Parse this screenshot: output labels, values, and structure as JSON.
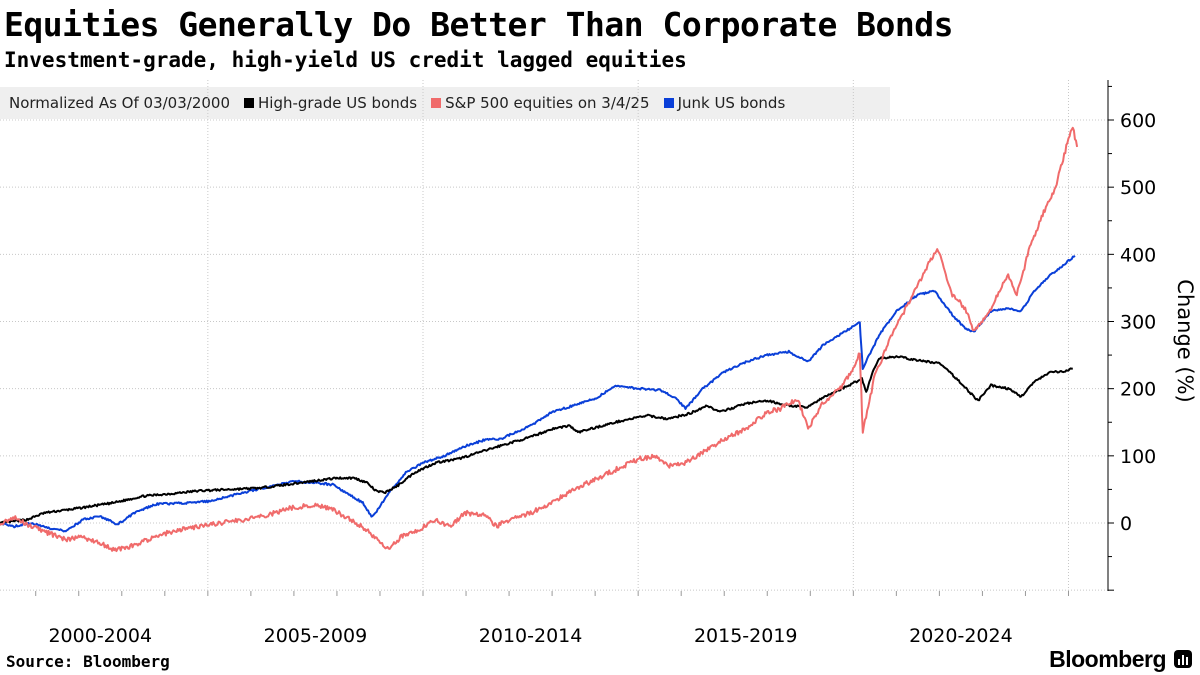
{
  "header": {
    "title": "Equities Generally Do Better Than Corporate Bonds",
    "subtitle": "Investment-grade, high-yield US credit lagged equities"
  },
  "legend": {
    "note": "Normalized As Of 03/03/2000",
    "entries": [
      {
        "label": "High-grade US bonds",
        "color": "#000000"
      },
      {
        "label": "S&P 500 equities on 3/4/25",
        "color": "#f06b6b"
      },
      {
        "label": "Junk US bonds",
        "color": "#0a3fd8"
      }
    ]
  },
  "footer": {
    "source": "Source: Bloomberg",
    "brand": "Bloomberg"
  },
  "chart_data": {
    "type": "line",
    "title": "Equities Generally Do Better Than Corporate Bonds",
    "ylabel": "Change (%)",
    "xlabel": "",
    "xlim": [
      2000.17,
      2025.5
    ],
    "ylim": [
      -100,
      660
    ],
    "yticks": [
      0,
      100,
      200,
      300,
      400,
      500,
      600
    ],
    "x_tick_labels": [
      {
        "label": "2000-2004",
        "x": 2002.5
      },
      {
        "label": "2005-2009",
        "x": 2007.5
      },
      {
        "label": "2010-2014",
        "x": 2012.5
      },
      {
        "label": "2015-2019",
        "x": 2017.5
      },
      {
        "label": "2020-2024",
        "x": 2022.5
      }
    ],
    "x_gridlines": [
      2005,
      2010,
      2015,
      2020,
      2025
    ],
    "grid": true,
    "series": [
      {
        "name": "High-grade US bonds",
        "color": "#000000",
        "points": [
          [
            2000.17,
            0
          ],
          [
            2000.8,
            5
          ],
          [
            2001.2,
            15
          ],
          [
            2002,
            22
          ],
          [
            2002.8,
            30
          ],
          [
            2003.5,
            40
          ],
          [
            2004.2,
            44
          ],
          [
            2004.8,
            48
          ],
          [
            2005.5,
            50
          ],
          [
            2006.2,
            52
          ],
          [
            2006.8,
            57
          ],
          [
            2007.5,
            63
          ],
          [
            2008,
            67
          ],
          [
            2008.4,
            67
          ],
          [
            2008.7,
            60
          ],
          [
            2008.9,
            48
          ],
          [
            2009.1,
            45
          ],
          [
            2009.4,
            55
          ],
          [
            2009.8,
            75
          ],
          [
            2010.3,
            90
          ],
          [
            2010.8,
            95
          ],
          [
            2011.3,
            105
          ],
          [
            2011.8,
            115
          ],
          [
            2012.5,
            128
          ],
          [
            2013,
            140
          ],
          [
            2013.4,
            145
          ],
          [
            2013.6,
            135
          ],
          [
            2014,
            142
          ],
          [
            2014.6,
            152
          ],
          [
            2015.2,
            160
          ],
          [
            2015.7,
            155
          ],
          [
            2016.2,
            163
          ],
          [
            2016.6,
            175
          ],
          [
            2016.9,
            165
          ],
          [
            2017.5,
            178
          ],
          [
            2018,
            182
          ],
          [
            2018.5,
            175
          ],
          [
            2018.9,
            172
          ],
          [
            2019.4,
            190
          ],
          [
            2019.9,
            205
          ],
          [
            2020.2,
            215
          ],
          [
            2020.3,
            195
          ],
          [
            2020.45,
            225
          ],
          [
            2020.6,
            245
          ],
          [
            2021,
            248
          ],
          [
            2021.5,
            242
          ],
          [
            2022,
            238
          ],
          [
            2022.4,
            215
          ],
          [
            2022.7,
            195
          ],
          [
            2022.9,
            182
          ],
          [
            2023.2,
            205
          ],
          [
            2023.6,
            200
          ],
          [
            2023.9,
            188
          ],
          [
            2024.2,
            210
          ],
          [
            2024.6,
            225
          ],
          [
            2024.9,
            225
          ],
          [
            2025.1,
            230
          ]
        ]
      },
      {
        "name": "S&P 500 equities on 3/4/25",
        "color": "#f06b6b",
        "points": [
          [
            2000.17,
            0
          ],
          [
            2000.5,
            8
          ],
          [
            2000.9,
            -5
          ],
          [
            2001.3,
            -15
          ],
          [
            2001.7,
            -25
          ],
          [
            2002,
            -20
          ],
          [
            2002.5,
            -30
          ],
          [
            2002.8,
            -40
          ],
          [
            2003.2,
            -35
          ],
          [
            2003.8,
            -20
          ],
          [
            2004.3,
            -10
          ],
          [
            2004.8,
            -5
          ],
          [
            2005.3,
            0
          ],
          [
            2005.8,
            5
          ],
          [
            2006.4,
            12
          ],
          [
            2006.9,
            22
          ],
          [
            2007.5,
            28
          ],
          [
            2007.9,
            20
          ],
          [
            2008.3,
            5
          ],
          [
            2008.7,
            -10
          ],
          [
            2009,
            -30
          ],
          [
            2009.2,
            -40
          ],
          [
            2009.5,
            -20
          ],
          [
            2009.9,
            -10
          ],
          [
            2010.3,
            5
          ],
          [
            2010.6,
            -5
          ],
          [
            2011,
            15
          ],
          [
            2011.5,
            10
          ],
          [
            2011.7,
            -5
          ],
          [
            2012,
            5
          ],
          [
            2012.5,
            15
          ],
          [
            2013,
            30
          ],
          [
            2013.5,
            50
          ],
          [
            2014,
            65
          ],
          [
            2014.5,
            80
          ],
          [
            2015,
            95
          ],
          [
            2015.4,
            100
          ],
          [
            2015.7,
            85
          ],
          [
            2016.1,
            90
          ],
          [
            2016.5,
            105
          ],
          [
            2017,
            125
          ],
          [
            2017.5,
            140
          ],
          [
            2018,
            165
          ],
          [
            2018.3,
            170
          ],
          [
            2018.7,
            185
          ],
          [
            2018.95,
            140
          ],
          [
            2019.3,
            180
          ],
          [
            2019.7,
            200
          ],
          [
            2020,
            230
          ],
          [
            2020.15,
            255
          ],
          [
            2020.22,
            135
          ],
          [
            2020.5,
            220
          ],
          [
            2020.9,
            280
          ],
          [
            2021.3,
            330
          ],
          [
            2021.7,
            380
          ],
          [
            2021.95,
            410
          ],
          [
            2022.3,
            340
          ],
          [
            2022.6,
            320
          ],
          [
            2022.8,
            285
          ],
          [
            2023.2,
            320
          ],
          [
            2023.6,
            370
          ],
          [
            2023.8,
            340
          ],
          [
            2024.1,
            410
          ],
          [
            2024.4,
            460
          ],
          [
            2024.7,
            500
          ],
          [
            2024.95,
            560
          ],
          [
            2025.1,
            590
          ],
          [
            2025.2,
            560
          ]
        ]
      },
      {
        "name": "Junk US bonds",
        "color": "#0a3fd8",
        "points": [
          [
            2000.17,
            0
          ],
          [
            2000.5,
            -5
          ],
          [
            2000.9,
            0
          ],
          [
            2001.3,
            -8
          ],
          [
            2001.7,
            -12
          ],
          [
            2002.1,
            5
          ],
          [
            2002.5,
            10
          ],
          [
            2002.9,
            -2
          ],
          [
            2003.3,
            15
          ],
          [
            2003.8,
            28
          ],
          [
            2004.5,
            30
          ],
          [
            2005,
            32
          ],
          [
            2005.5,
            40
          ],
          [
            2006,
            48
          ],
          [
            2006.5,
            55
          ],
          [
            2007,
            62
          ],
          [
            2007.5,
            60
          ],
          [
            2007.9,
            57
          ],
          [
            2008.3,
            42
          ],
          [
            2008.6,
            30
          ],
          [
            2008.8,
            10
          ],
          [
            2008.9,
            15
          ],
          [
            2009.2,
            45
          ],
          [
            2009.6,
            75
          ],
          [
            2010,
            90
          ],
          [
            2010.5,
            100
          ],
          [
            2011,
            115
          ],
          [
            2011.5,
            125
          ],
          [
            2011.8,
            125
          ],
          [
            2012.5,
            145
          ],
          [
            2013,
            165
          ],
          [
            2013.5,
            175
          ],
          [
            2014,
            185
          ],
          [
            2014.5,
            205
          ],
          [
            2015,
            200
          ],
          [
            2015.5,
            198
          ],
          [
            2015.9,
            185
          ],
          [
            2016.1,
            170
          ],
          [
            2016.5,
            200
          ],
          [
            2017,
            225
          ],
          [
            2017.5,
            240
          ],
          [
            2018,
            250
          ],
          [
            2018.5,
            255
          ],
          [
            2018.95,
            240
          ],
          [
            2019.3,
            265
          ],
          [
            2019.8,
            285
          ],
          [
            2020.15,
            298
          ],
          [
            2020.22,
            230
          ],
          [
            2020.6,
            280
          ],
          [
            2021,
            315
          ],
          [
            2021.5,
            340
          ],
          [
            2021.9,
            345
          ],
          [
            2022.3,
            310
          ],
          [
            2022.6,
            290
          ],
          [
            2022.8,
            285
          ],
          [
            2023.2,
            315
          ],
          [
            2023.6,
            320
          ],
          [
            2023.9,
            315
          ],
          [
            2024.2,
            345
          ],
          [
            2024.6,
            370
          ],
          [
            2024.9,
            385
          ],
          [
            2025.15,
            398
          ]
        ]
      }
    ]
  }
}
